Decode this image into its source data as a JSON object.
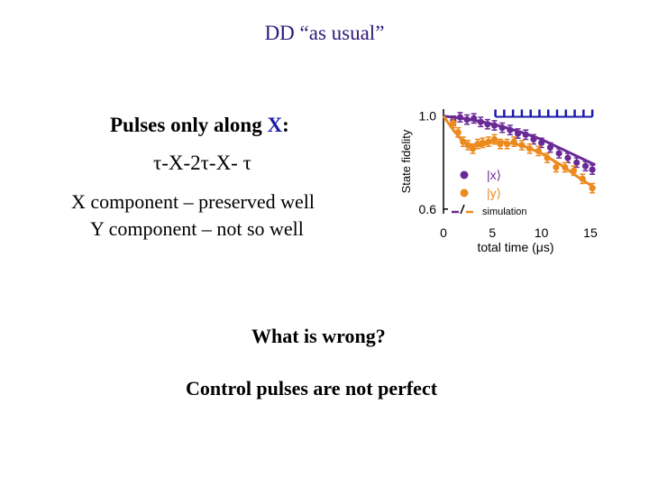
{
  "slide": {
    "title": "DD “as usual”",
    "pulses_prefix": "Pulses only along ",
    "pulses_axis": "X",
    "pulses_suffix": ":",
    "sequence": "τ-X-2τ-X- τ",
    "x_component": "X component – preserved well",
    "y_component": "Y component – not so well",
    "question": "What is wrong?",
    "answer": "Control pulses are not perfect"
  },
  "colors": {
    "x_series": "#6a2a96",
    "y_series": "#ec8a1e",
    "title": "#2e1a7a"
  },
  "chart_data": {
    "type": "scatter",
    "ylabel": "State fidelity",
    "xlabel": "total time (μs)",
    "xlim": [
      0,
      16.2
    ],
    "ylim": [
      0.58,
      1.03
    ],
    "x_ticks": [
      0,
      5,
      10,
      15
    ],
    "y_ticks": [
      0.6,
      1.0
    ],
    "x_tick_labels": [
      "0",
      "5",
      "10",
      "15"
    ],
    "y_tick_labels": [
      "0.6",
      "1.0"
    ],
    "legend": [
      {
        "label": "|x⟩",
        "marker": "point"
      },
      {
        "label": "|y⟩",
        "marker": "point"
      },
      {
        "label": "simulation",
        "marker": "line"
      }
    ],
    "series": [
      {
        "name": "|x⟩",
        "color": "#6a2a96",
        "x": [
          1.0,
          1.7,
          2.4,
          3.1,
          3.8,
          4.5,
          5.2,
          6.0,
          6.8,
          7.6,
          8.4,
          9.2,
          10.0,
          10.9,
          11.8,
          12.7,
          13.6,
          14.5,
          15.2
        ],
        "y": [
          0.98,
          0.995,
          0.985,
          0.99,
          0.975,
          0.965,
          0.96,
          0.95,
          0.94,
          0.925,
          0.92,
          0.9,
          0.885,
          0.865,
          0.84,
          0.82,
          0.8,
          0.785,
          0.77
        ],
        "err": 0.02
      },
      {
        "name": "|y⟩",
        "color": "#ec8a1e",
        "x": [
          1.0,
          1.5,
          2.0,
          2.5,
          3.0,
          3.5,
          4.0,
          4.6,
          5.2,
          5.8,
          6.5,
          7.2,
          8.0,
          8.8,
          9.7,
          10.6,
          11.5,
          12.4,
          13.3,
          14.2,
          15.2
        ],
        "y": [
          0.97,
          0.93,
          0.89,
          0.875,
          0.86,
          0.88,
          0.885,
          0.89,
          0.9,
          0.88,
          0.88,
          0.89,
          0.875,
          0.86,
          0.85,
          0.82,
          0.78,
          0.78,
          0.765,
          0.73,
          0.69
        ],
        "err": 0.02
      },
      {
        "name": "simulation x",
        "color": "#6a2a96",
        "kind": "line",
        "x": [
          0,
          2,
          4,
          6,
          8,
          10,
          12,
          14,
          15.5
        ],
        "y": [
          1.0,
          0.99,
          0.975,
          0.955,
          0.93,
          0.9,
          0.86,
          0.82,
          0.79
        ]
      },
      {
        "name": "simulation y",
        "color": "#ec8a1e",
        "kind": "line",
        "x": [
          0,
          1,
          2,
          3,
          4,
          5,
          6,
          8,
          10,
          12,
          14,
          15.5
        ],
        "y": [
          1.0,
          0.94,
          0.89,
          0.87,
          0.875,
          0.89,
          0.89,
          0.875,
          0.84,
          0.79,
          0.73,
          0.69
        ]
      },
      {
        "name": "simulation top",
        "color": "#1a1aaa",
        "kind": "ticks",
        "x": [
          5.3,
          6.2,
          7.1,
          8.0,
          8.9,
          9.8,
          10.7,
          11.6,
          12.5,
          13.4,
          14.3,
          15.2
        ],
        "y": [
          1.005,
          1.005,
          1.005,
          1.005,
          1.005,
          1.005,
          1.005,
          1.005,
          1.005,
          1.005,
          1.005,
          1.005
        ]
      }
    ]
  }
}
